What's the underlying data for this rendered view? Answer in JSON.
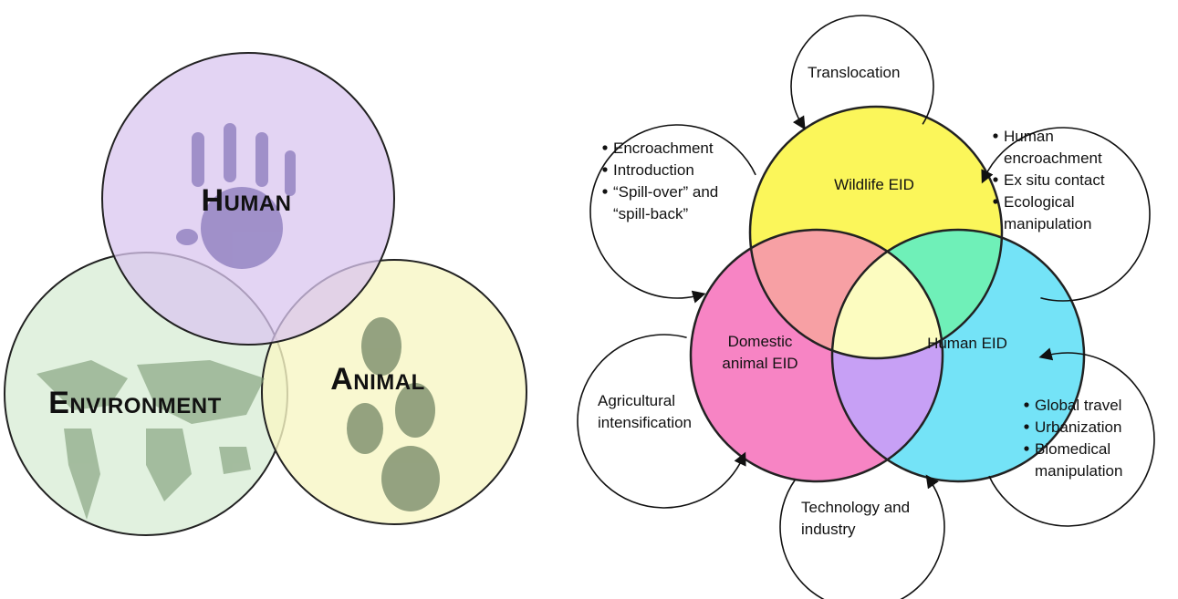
{
  "left_diagram": {
    "circles": [
      {
        "label": "Human"
      },
      {
        "label": "Environment"
      },
      {
        "label": "Animal"
      }
    ]
  },
  "right_diagram": {
    "circles": [
      {
        "label_lines": [
          "Wildlife EID"
        ]
      },
      {
        "label_lines": [
          "Domestic",
          "animal EID"
        ]
      },
      {
        "label_lines": [
          "Human EID"
        ]
      }
    ],
    "drivers": [
      {
        "lines": [
          "Translocation"
        ]
      },
      {
        "bullets": [
          [
            "Encroachment"
          ],
          [
            "Introduction"
          ],
          [
            "“Spill-over” and",
            "“spill-back”"
          ]
        ]
      },
      {
        "bullets": [
          [
            "Human",
            "encroachment"
          ],
          [
            "Ex situ contact"
          ],
          [
            "Ecological",
            "manipulation"
          ]
        ]
      },
      {
        "lines": [
          "Agricultural",
          "intensification"
        ]
      },
      {
        "lines": [
          "Technology and",
          "industry"
        ]
      },
      {
        "bullets": [
          [
            "Global travel"
          ],
          [
            "Urbanization"
          ],
          [
            "Biomedical",
            "manipulation"
          ]
        ]
      }
    ]
  }
}
